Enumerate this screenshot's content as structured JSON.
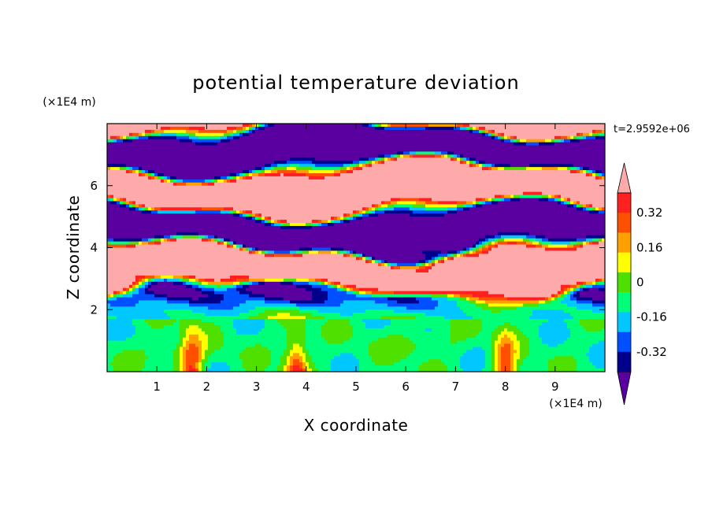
{
  "chart_data": {
    "type": "contour",
    "title": "potential temperature deviation",
    "xlabel": "X coordinate",
    "ylabel": "Z coordinate",
    "x_unit": "(×1E4 m)",
    "y_unit": "(×1E4 m)",
    "time_label": "t=2.9592e+06",
    "xlim": [
      0,
      10
    ],
    "ylim": [
      0,
      8
    ],
    "x_ticks": [
      "1",
      "2",
      "3",
      "4",
      "5",
      "6",
      "7",
      "8",
      "9"
    ],
    "y_ticks": [
      "2",
      "4",
      "6"
    ],
    "colorbar": {
      "labels": [
        "0.32",
        "0.16",
        "0",
        "-0.16",
        "-0.32"
      ],
      "label_values": [
        0.32,
        0.16,
        0,
        -0.16,
        -0.32
      ],
      "levels": [
        -0.4,
        -0.32,
        -0.24,
        -0.16,
        -0.08,
        0,
        0.08,
        0.16,
        0.24,
        0.32,
        0.4
      ],
      "colors": [
        "#5b00a0",
        "#00008c",
        "#0050ff",
        "#00c8ff",
        "#00ff78",
        "#50e000",
        "#ffff00",
        "#ffa000",
        "#ff5000",
        "#ff2020",
        "#ffaaaa"
      ],
      "extend": "both"
    },
    "structure": {
      "surface_layer_top": 1.7,
      "banded_region": [
        2.0,
        8.0
      ],
      "warm_plumes_x": [
        1.7,
        3.8,
        8.0
      ]
    }
  }
}
